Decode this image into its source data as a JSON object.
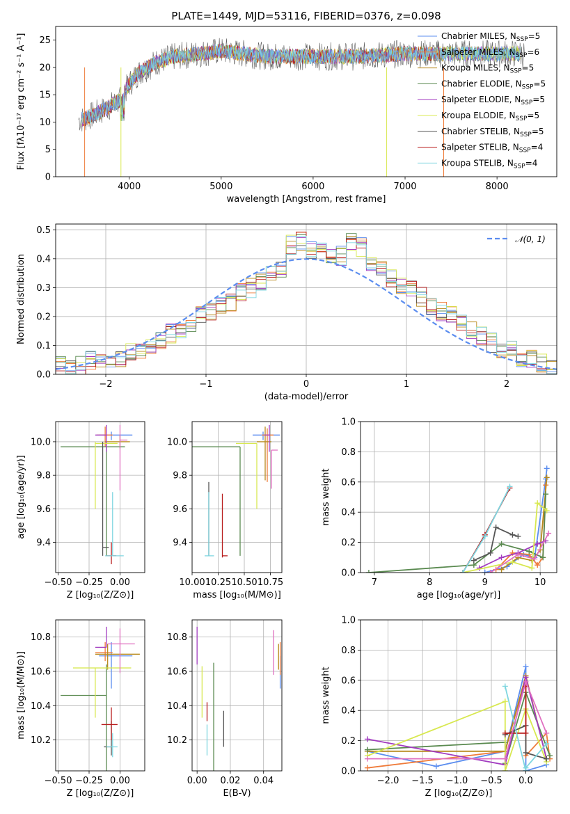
{
  "figure_title": "PLATE=1449, MJD=53116, FIBERID=0376, z=0.098",
  "colors": {
    "Chabrier MILES": "#5b8def",
    "Salpeter MILES": "#ef7b3a",
    "Kroupa MILES": "#b88a1e",
    "Chabrier ELODIE": "#5a8a50",
    "Salpeter ELODIE": "#a23cc0",
    "Kroupa ELODIE": "#d8e850",
    "Chabrier STELIB": "#555555",
    "Salpeter STELIB": "#b81c1c",
    "Kroupa STELIB": "#7fd6e0",
    "extra": "#e070c0",
    "gaussian": "#5b8def",
    "grid": "#b0b0b0"
  },
  "chart_data": [
    {
      "id": "spectrum",
      "type": "line",
      "xlabel": "wavelength [Angstrom, rest frame]",
      "ylabel": "Flux [fλ10⁻¹⁷ erg cm⁻² s⁻¹ A⁻¹]",
      "xlim": [
        3200,
        8650
      ],
      "ylim": [
        0,
        27.5
      ],
      "xticks": [
        "4000",
        "5000",
        "6000",
        "7000",
        "8000"
      ],
      "yticks": [
        "0",
        "5",
        "10",
        "15",
        "20",
        "25"
      ],
      "grid": false,
      "legend_position": "right",
      "legend": [
        {
          "label": "Chabrier MILES, N",
          "sub": "SSP",
          "suffix": "=5",
          "series": "Chabrier MILES"
        },
        {
          "label": "Salpeter MILES, N",
          "sub": "SSP",
          "suffix": "=6",
          "series": "Salpeter MILES"
        },
        {
          "label": "Kroupa MILES, N",
          "sub": "SSP",
          "suffix": "=5",
          "series": "Kroupa MILES"
        },
        {
          "label": "Chabrier ELODIE, N",
          "sub": "SSP",
          "suffix": "=5",
          "series": "Chabrier ELODIE"
        },
        {
          "label": "Salpeter ELODIE, N",
          "sub": "SSP",
          "suffix": "=5",
          "series": "Salpeter ELODIE"
        },
        {
          "label": "Kroupa ELODIE, N",
          "sub": "SSP",
          "suffix": "=5",
          "series": "Kroupa ELODIE"
        },
        {
          "label": "Chabrier STELIB, N",
          "sub": "SSP",
          "suffix": "=5",
          "series": "Chabrier STELIB"
        },
        {
          "label": "Salpeter STELIB, N",
          "sub": "SSP",
          "suffix": "=4",
          "series": "Salpeter STELIB"
        },
        {
          "label": "Kroupa STELIB, N",
          "sub": "SSP",
          "suffix": "=4",
          "series": "Kroupa STELIB"
        }
      ],
      "continuum": {
        "x": [
          3500,
          3700,
          3900,
          4000,
          4100,
          4300,
          4500,
          5000,
          5500,
          6000,
          6500,
          7000,
          7400
        ],
        "y": [
          10.5,
          12,
          14,
          17,
          19,
          21,
          22,
          23,
          22,
          22,
          22,
          22.5,
          22.5
        ]
      }
    },
    {
      "id": "residuals",
      "type": "histogram",
      "xlabel": "(data-model)/error",
      "ylabel": "Normed distribution",
      "xlim": [
        -2.5,
        2.5
      ],
      "ylim": [
        0,
        0.52
      ],
      "xticks": [
        "−2",
        "−1",
        "0",
        "1",
        "2"
      ],
      "yticks": [
        "0.0",
        "0.1",
        "0.2",
        "0.3",
        "0.4",
        "0.5"
      ],
      "grid": true,
      "legend_position": "upper right",
      "legend_label": "𝒩(0, 1)",
      "bin_width": 0.1,
      "bin_start": -2.5,
      "example_bins": [
        0.03,
        0.03,
        0.03,
        0.05,
        0.04,
        0.05,
        0.06,
        0.08,
        0.09,
        0.1,
        0.12,
        0.14,
        0.16,
        0.18,
        0.2,
        0.22,
        0.24,
        0.25,
        0.28,
        0.3,
        0.32,
        0.35,
        0.37,
        0.45,
        0.46,
        0.43,
        0.42,
        0.4,
        0.41,
        0.46,
        0.44,
        0.38,
        0.36,
        0.33,
        0.31,
        0.29,
        0.27,
        0.24,
        0.22,
        0.2,
        0.18,
        0.15,
        0.13,
        0.11,
        0.09,
        0.08,
        0.06,
        0.05,
        0.04,
        0.03
      ]
    },
    {
      "id": "age_vs_Z",
      "type": "errorbar",
      "xlabel": "Z [log₁₀(Z/Z⊙)]",
      "ylabel": "age  [log₁₀(age/yr)]",
      "xlim": [
        -0.52,
        0.2
      ],
      "ylim": [
        9.22,
        10.12
      ],
      "xticks": [
        "−0.50",
        "−0.25",
        "0.00"
      ],
      "yticks": [
        "9.4",
        "9.6",
        "9.8",
        "10.0"
      ],
      "grid": true,
      "points": [
        {
          "x": -0.07,
          "y": 10.04,
          "xl": 0.1,
          "xr": 0.17,
          "yl": 0.03,
          "yh": 0.02,
          "c": "Chabrier MILES"
        },
        {
          "x": -0.12,
          "y": 10.04,
          "xl": 0.07,
          "xr": 0.06,
          "yl": 0.07,
          "yh": 0.05,
          "c": "Salpeter MILES"
        },
        {
          "x": 0.0,
          "y": 10.0,
          "xl": 0.12,
          "xr": 0.08,
          "yl": 0.04,
          "yh": 0.04,
          "c": "Kroupa MILES"
        },
        {
          "x": -0.11,
          "y": 9.97,
          "xl": 0.37,
          "xr": 0.15,
          "yl": 0.65,
          "yh": 0.03,
          "c": "Chabrier ELODIE"
        },
        {
          "x": -0.11,
          "y": 10.04,
          "xl": 0.09,
          "xr": 0.0,
          "yl": 0.1,
          "yh": 0.06,
          "c": "Salpeter ELODIE"
        },
        {
          "x": -0.2,
          "y": 9.99,
          "xl": 0.0,
          "xr": 0.18,
          "yl": 0.39,
          "yh": 0.01,
          "c": "Kroupa ELODIE"
        },
        {
          "x": -0.14,
          "y": 9.37,
          "xl": 0.0,
          "xr": 0.05,
          "yl": 0.05,
          "yh": 0.63,
          "c": "Chabrier STELIB"
        },
        {
          "x": -0.07,
          "y": 9.32,
          "xl": 0.04,
          "xr": 0.04,
          "yl": 0.05,
          "yh": 0.08,
          "c": "Salpeter STELIB"
        },
        {
          "x": -0.06,
          "y": 9.32,
          "xl": 0.06,
          "xr": 0.09,
          "yl": 0.0,
          "yh": 0.38,
          "c": "Kroupa STELIB"
        },
        {
          "x": 0.0,
          "y": 10.01,
          "xl": 0.0,
          "xr": 0.06,
          "yl": 0.3,
          "yh": 0.09,
          "c": "extra"
        }
      ]
    },
    {
      "id": "age_vs_mass",
      "type": "errorbar",
      "xlabel": "mass [log₁₀(M/M⊙)]",
      "ylabel": "",
      "xlim": [
        10.0,
        10.86
      ],
      "ylim": [
        9.22,
        10.12
      ],
      "xticks": [
        "10.00",
        "10.25",
        "10.50",
        "10.75"
      ],
      "yticks": [
        "9.4",
        "9.6",
        "9.8",
        "10.0"
      ],
      "grid": true,
      "points": [
        {
          "x": 10.68,
          "y": 10.04,
          "xl": 0.1,
          "xr": 0.16,
          "yl": 0.03,
          "yh": 0.02,
          "c": "Chabrier MILES"
        },
        {
          "x": 10.72,
          "y": 10.04,
          "xl": 0.05,
          "xr": 0.06,
          "yl": 0.28,
          "yh": 0.04,
          "c": "Salpeter MILES"
        },
        {
          "x": 10.7,
          "y": 10.0,
          "xl": 0.08,
          "xr": 0.06,
          "yl": 0.23,
          "yh": 0.09,
          "c": "Kroupa MILES"
        },
        {
          "x": 10.46,
          "y": 9.97,
          "xl": 0.46,
          "xr": 0.0,
          "yl": 0.65,
          "yh": 0.0,
          "c": "Chabrier ELODIE"
        },
        {
          "x": 10.74,
          "y": 10.04,
          "xl": 0.05,
          "xr": 0.0,
          "yl": 0.1,
          "yh": 0.06,
          "c": "Salpeter ELODIE"
        },
        {
          "x": 10.62,
          "y": 9.99,
          "xl": 0.2,
          "xr": 0.0,
          "yl": 0.39,
          "yh": 0.0,
          "c": "Kroupa ELODIE"
        },
        {
          "x": 10.16,
          "y": 9.37,
          "xl": 0.0,
          "xr": 0.0,
          "yl": 0.05,
          "yh": 0.39,
          "c": "Chabrier STELIB"
        },
        {
          "x": 10.29,
          "y": 9.32,
          "xl": 0.0,
          "xr": 0.05,
          "yl": 0.01,
          "yh": 0.37,
          "c": "Salpeter STELIB"
        },
        {
          "x": 10.16,
          "y": 9.32,
          "xl": 0.04,
          "xr": 0.05,
          "yl": 0.0,
          "yh": 0.38,
          "c": "Kroupa STELIB"
        },
        {
          "x": 10.76,
          "y": 9.95,
          "xl": 0.0,
          "xr": 0.06,
          "yl": 0.23,
          "yh": 0.0,
          "c": "extra"
        }
      ]
    },
    {
      "id": "weight_vs_age",
      "type": "line",
      "xlabel": "age  [log₁₀(age/yr)]",
      "ylabel": "mass weight",
      "xlim": [
        6.75,
        10.3
      ],
      "ylim": [
        0,
        1
      ],
      "xticks": [
        "7",
        "8",
        "9",
        "10"
      ],
      "yticks": [
        "0.0",
        "0.2",
        "0.4",
        "0.6",
        "0.8",
        "1.0"
      ],
      "grid": true,
      "series": [
        {
          "c": "Chabrier MILES",
          "x": [
            9.0,
            9.4,
            9.7,
            9.9,
            10.1,
            10.12
          ],
          "y": [
            0.0,
            0.04,
            0.12,
            0.1,
            0.62,
            0.69
          ]
        },
        {
          "c": "Salpeter MILES",
          "x": [
            9.2,
            9.5,
            9.8,
            9.95,
            10.05,
            10.1
          ],
          "y": [
            0.02,
            0.13,
            0.12,
            0.05,
            0.1,
            0.58
          ]
        },
        {
          "c": "Kroupa MILES",
          "x": [
            9.3,
            9.6,
            9.85,
            10.0,
            10.12
          ],
          "y": [
            0.02,
            0.1,
            0.08,
            0.15,
            0.63
          ]
        },
        {
          "c": "Chabrier ELODIE",
          "x": [
            6.9,
            8.8,
            9.3,
            9.8,
            10.05,
            10.1
          ],
          "y": [
            0.0,
            0.05,
            0.19,
            0.14,
            0.1,
            0.52
          ]
        },
        {
          "c": "Salpeter ELODIE",
          "x": [
            8.9,
            9.3,
            9.6,
            9.95,
            10.1
          ],
          "y": [
            0.03,
            0.1,
            0.13,
            0.19,
            0.21
          ]
        },
        {
          "c": "Kroupa ELODIE",
          "x": [
            8.6,
            9.5,
            9.85,
            9.95,
            10.12
          ],
          "y": [
            0.0,
            0.07,
            0.03,
            0.46,
            0.41
          ]
        },
        {
          "c": "Chabrier STELIB",
          "x": [
            8.8,
            9.1,
            9.2,
            9.5,
            9.6
          ],
          "y": [
            0.08,
            0.13,
            0.3,
            0.25,
            0.24
          ]
        },
        {
          "c": "Salpeter STELIB",
          "x": [
            8.6,
            9.0,
            9.45
          ],
          "y": [
            0.0,
            0.25,
            0.56
          ]
        },
        {
          "c": "Kroupa STELIB",
          "x": [
            8.6,
            9.0,
            9.45
          ],
          "y": [
            0.0,
            0.24,
            0.57
          ]
        },
        {
          "c": "extra",
          "x": [
            9.1,
            9.6,
            9.9,
            10.15
          ],
          "y": [
            0.0,
            0.12,
            0.09,
            0.26
          ]
        }
      ]
    },
    {
      "id": "mass_vs_Z",
      "type": "errorbar",
      "xlabel": "Z [log₁₀(Z/Z⊙)]",
      "ylabel": "mass [log₁₀(M/M⊙)]",
      "xlim": [
        -0.52,
        0.2
      ],
      "ylim": [
        10.02,
        10.9
      ],
      "xticks": [
        "−0.50",
        "−0.25",
        "0.00"
      ],
      "yticks": [
        "10.2",
        "10.4",
        "10.6",
        "10.8"
      ],
      "grid": true,
      "points": [
        {
          "x": -0.07,
          "y": 10.69,
          "xl": 0.1,
          "xr": 0.17,
          "yl": 0.19,
          "yh": 0.08,
          "c": "Chabrier MILES"
        },
        {
          "x": -0.12,
          "y": 10.71,
          "xl": 0.08,
          "xr": 0.06,
          "yl": 0.05,
          "yh": 0.06,
          "c": "Salpeter MILES"
        },
        {
          "x": -0.1,
          "y": 10.7,
          "xl": 0.1,
          "xr": 0.26,
          "yl": 0.09,
          "yh": 0.06,
          "c": "Kroupa MILES"
        },
        {
          "x": -0.11,
          "y": 10.46,
          "xl": 0.37,
          "xr": 0.0,
          "yl": 0.44,
          "yh": 0.18,
          "c": "Chabrier ELODIE"
        },
        {
          "x": -0.11,
          "y": 10.74,
          "xl": 0.09,
          "xr": 0.0,
          "yl": 0.0,
          "yh": 0.12,
          "c": "Salpeter ELODIE"
        },
        {
          "x": -0.2,
          "y": 10.62,
          "xl": 0.18,
          "xr": 0.29,
          "yl": 0.29,
          "yh": 0.0,
          "c": "Kroupa ELODIE"
        },
        {
          "x": -0.07,
          "y": 10.16,
          "xl": 0.06,
          "xr": 0.0,
          "yl": 0.05,
          "yh": 0.15,
          "c": "Chabrier STELIB"
        },
        {
          "x": -0.07,
          "y": 10.29,
          "xl": 0.08,
          "xr": 0.05,
          "yl": 0.09,
          "yh": 0.1,
          "c": "Salpeter STELIB"
        },
        {
          "x": -0.06,
          "y": 10.16,
          "xl": 0.05,
          "xr": 0.04,
          "yl": 0.06,
          "yh": 0.08,
          "c": "Kroupa STELIB"
        },
        {
          "x": 0.0,
          "y": 10.76,
          "xl": 0.1,
          "xr": 0.12,
          "yl": 0.17,
          "yh": 0.09,
          "c": "extra"
        }
      ]
    },
    {
      "id": "mass_vs_ebv",
      "type": "errorbar",
      "xlabel": "E(B-V)",
      "ylabel": "",
      "xlim": [
        -0.003,
        0.051
      ],
      "ylim": [
        10.02,
        10.9
      ],
      "xticks": [
        "0.00",
        "0.02",
        "0.04"
      ],
      "yticks": [
        "10.2",
        "10.4",
        "10.6",
        "10.8"
      ],
      "grid": true,
      "points": [
        {
          "x": 0.05,
          "y": 10.6,
          "xl": 0.0,
          "xr": 0.0,
          "yl": 0.1,
          "yh": 0.09,
          "c": "Chabrier MILES"
        },
        {
          "x": 0.05,
          "y": 10.71,
          "xl": 0.0,
          "xr": 0.0,
          "yl": 0.13,
          "yh": 0.06,
          "c": "Salpeter MILES"
        },
        {
          "x": 0.049,
          "y": 10.66,
          "xl": 0.0,
          "xr": 0.0,
          "yl": 0.05,
          "yh": 0.1,
          "c": "Kroupa MILES"
        },
        {
          "x": 0.01,
          "y": 10.46,
          "xl": 0.0,
          "xr": 0.0,
          "yl": 0.44,
          "yh": 0.19,
          "c": "Chabrier ELODIE"
        },
        {
          "x": 0.0,
          "y": 10.74,
          "xl": 0.0,
          "xr": 0.0,
          "yl": 0.1,
          "yh": 0.12,
          "c": "Salpeter ELODIE"
        },
        {
          "x": 0.003,
          "y": 10.48,
          "xl": 0.0,
          "xr": 0.0,
          "yl": 0.15,
          "yh": 0.15,
          "c": "Kroupa ELODIE"
        },
        {
          "x": 0.016,
          "y": 10.26,
          "xl": 0.0,
          "xr": 0.0,
          "yl": 0.1,
          "yh": 0.11,
          "c": "Chabrier STELIB"
        },
        {
          "x": 0.006,
          "y": 10.37,
          "xl": 0.0,
          "xr": 0.0,
          "yl": 0.06,
          "yh": 0.05,
          "c": "Salpeter STELIB"
        },
        {
          "x": 0.006,
          "y": 10.22,
          "xl": 0.0,
          "xr": 0.0,
          "yl": 0.11,
          "yh": 0.07,
          "c": "Kroupa STELIB"
        },
        {
          "x": 0.046,
          "y": 10.71,
          "xl": 0.0,
          "xr": 0.0,
          "yl": 0.13,
          "yh": 0.13,
          "c": "extra"
        }
      ]
    },
    {
      "id": "weight_vs_Z",
      "type": "line",
      "xlabel": "Z [log₁₀(Z/Z⊙)]",
      "ylabel": "mass weight",
      "xlim": [
        -2.4,
        0.45
      ],
      "ylim": [
        0,
        1
      ],
      "xticks": [
        "−2.0",
        "−1.5",
        "−1.0",
        "−0.5",
        "0.0"
      ],
      "yticks": [
        "0.0",
        "0.2",
        "0.4",
        "0.6",
        "0.8",
        "1.0"
      ],
      "grid": true,
      "series": [
        {
          "c": "Chabrier MILES",
          "x": [
            -2.3,
            -1.3,
            -0.3,
            0.0,
            0.0,
            0.3
          ],
          "y": [
            0.13,
            0.03,
            0.13,
            0.69,
            0.0,
            0.04
          ]
        },
        {
          "c": "Salpeter MILES",
          "x": [
            -2.3,
            -0.3,
            0.0,
            0.0,
            0.3,
            0.35
          ],
          "y": [
            0.02,
            0.13,
            0.62,
            0.1,
            0.25,
            0.08
          ]
        },
        {
          "c": "Kroupa MILES",
          "x": [
            -2.3,
            -0.3,
            0.0,
            0.3
          ],
          "y": [
            0.13,
            0.13,
            0.63,
            0.08
          ]
        },
        {
          "c": "Chabrier ELODIE",
          "x": [
            -2.3,
            -0.3,
            -0.3,
            0.0,
            0.35
          ],
          "y": [
            0.14,
            0.19,
            0.05,
            0.52,
            0.1
          ]
        },
        {
          "c": "Salpeter ELODIE",
          "x": [
            -2.3,
            -0.3,
            0.0,
            0.3
          ],
          "y": [
            0.21,
            0.04,
            0.62,
            0.08
          ]
        },
        {
          "c": "Kroupa ELODIE",
          "x": [
            -2.3,
            -0.3,
            -0.3,
            0.0,
            0.3
          ],
          "y": [
            0.1,
            0.46,
            0.0,
            0.41,
            0.06
          ]
        },
        {
          "c": "Chabrier STELIB",
          "x": [
            -0.3,
            0.0,
            0.0,
            0.3
          ],
          "y": [
            0.24,
            0.3,
            0.12,
            0.08
          ]
        },
        {
          "c": "Salpeter STELIB",
          "x": [
            -0.3,
            0.0,
            0.0
          ],
          "y": [
            0.25,
            0.25,
            0.56
          ]
        },
        {
          "c": "Kroupa STELIB",
          "x": [
            -0.3,
            0.0,
            0.0,
            0.3
          ],
          "y": [
            0.56,
            0.0,
            0.02,
            0.18
          ]
        },
        {
          "c": "extra",
          "x": [
            -2.3,
            -0.3,
            0.0,
            0.3
          ],
          "y": [
            0.08,
            0.08,
            0.59,
            0.25
          ]
        }
      ]
    }
  ]
}
